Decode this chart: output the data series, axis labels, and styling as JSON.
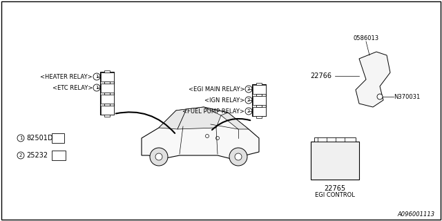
{
  "title": "",
  "background_color": "#ffffff",
  "border_color": "#000000",
  "diagram_number": "A096001113",
  "labels": {
    "heater_relay": "<HEATER RELAY>",
    "etc_relay": "<ETC RELAY>",
    "egi_main_relay": "<EGI MAIN RELAY>",
    "ign_relay": "<IGN RELAY>",
    "fuel_pump_relay": "<FUEL PUMP RELAY>",
    "part1": "82501D",
    "part2": "25232",
    "part0586013": "0586013",
    "part22766": "22766",
    "partN370031": "N370031",
    "part22765": "22765",
    "egi_control": "EGI CONTROL"
  },
  "circle1_label": "1",
  "circle2_label": "2",
  "line_color": "#000000",
  "font_size": 7,
  "small_font_size": 6
}
